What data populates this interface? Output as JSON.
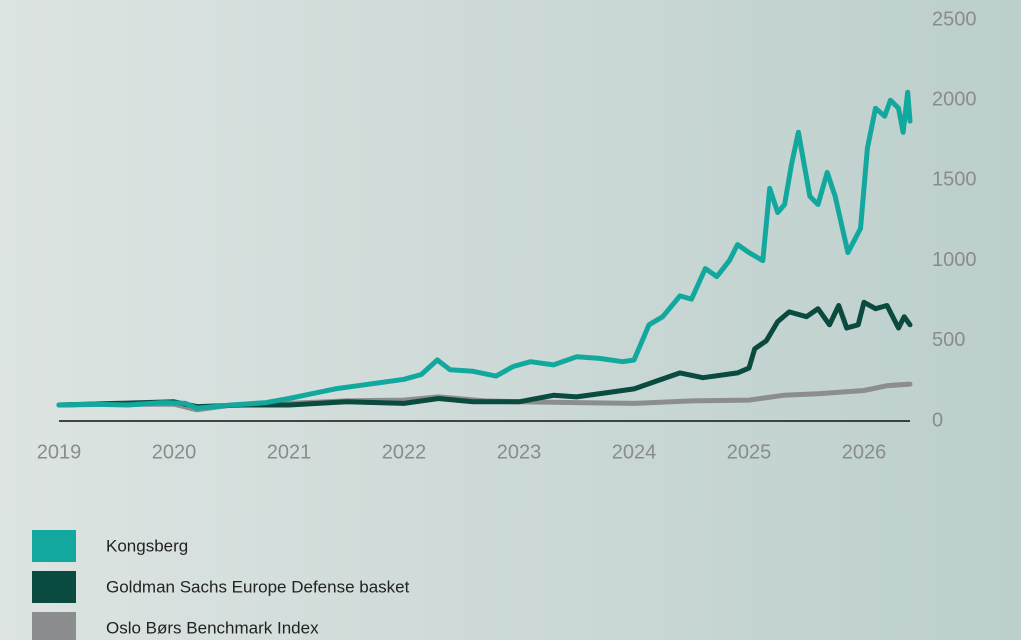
{
  "chart_data": {
    "type": "line",
    "xlim": [
      2019,
      2026.4
    ],
    "xticks": [
      2019,
      2020,
      2021,
      2022,
      2023,
      2024,
      2025,
      2026
    ],
    "ylim": [
      0,
      2500
    ],
    "yticks": [
      0,
      500,
      1000,
      1500,
      2000,
      2500
    ],
    "grid": false,
    "legend": "bottom-left",
    "series": [
      {
        "name": "Kongsberg",
        "color": "#13a89e",
        "x": [
          2019,
          2019.3,
          2019.6,
          2019.9,
          2020.1,
          2020.2,
          2020.5,
          2020.8,
          2021,
          2021.2,
          2021.4,
          2021.6,
          2021.8,
          2022,
          2022.15,
          2022.29,
          2022.4,
          2022.6,
          2022.8,
          2022.95,
          2023.1,
          2023.3,
          2023.5,
          2023.7,
          2023.9,
          2024,
          2024.13,
          2024.25,
          2024.4,
          2024.5,
          2024.62,
          2024.72,
          2024.83,
          2024.9,
          2025,
          2025.12,
          2025.18,
          2025.25,
          2025.31,
          2025.37,
          2025.43,
          2025.53,
          2025.6,
          2025.68,
          2025.75,
          2025.86,
          2025.97,
          2026.03,
          2026.1,
          2026.18,
          2026.23,
          2026.3,
          2026.34,
          2026.38,
          2026.4
        ],
        "values": [
          100,
          105,
          100,
          115,
          110,
          80,
          100,
          115,
          140,
          170,
          200,
          220,
          240,
          260,
          290,
          380,
          320,
          310,
          280,
          340,
          370,
          350,
          400,
          390,
          370,
          380,
          600,
          650,
          780,
          760,
          950,
          900,
          1000,
          1100,
          1050,
          1000,
          1450,
          1300,
          1350,
          1600,
          1800,
          1400,
          1350,
          1550,
          1400,
          1050,
          1200,
          1700,
          1950,
          1900,
          2000,
          1950,
          1800,
          2050,
          1870
        ]
      },
      {
        "name": "Goldman Sachs Europe Defense basket",
        "color": "#0b4a3e",
        "x": [
          2019,
          2019.5,
          2020,
          2020.2,
          2020.6,
          2021,
          2021.5,
          2022,
          2022.3,
          2022.6,
          2023,
          2023.3,
          2023.5,
          2023.8,
          2024,
          2024.2,
          2024.4,
          2024.6,
          2024.9,
          2025,
          2025.05,
          2025.15,
          2025.25,
          2025.35,
          2025.5,
          2025.6,
          2025.7,
          2025.78,
          2025.85,
          2025.95,
          2026,
          2026.1,
          2026.2,
          2026.3,
          2026.35,
          2026.4
        ],
        "values": [
          100,
          110,
          120,
          90,
          100,
          100,
          120,
          110,
          140,
          120,
          120,
          160,
          150,
          180,
          200,
          250,
          300,
          270,
          300,
          330,
          450,
          500,
          620,
          680,
          650,
          700,
          600,
          720,
          580,
          600,
          740,
          700,
          720,
          580,
          650,
          600
        ]
      },
      {
        "name": "Oslo Børs Benchmark Index",
        "color": "#8c8d8f",
        "x": [
          2019,
          2019.5,
          2020,
          2020.2,
          2020.5,
          2021,
          2021.5,
          2022,
          2022.3,
          2022.7,
          2023,
          2023.5,
          2024,
          2024.5,
          2025,
          2025.3,
          2025.6,
          2026,
          2026.2,
          2026.4
        ],
        "values": [
          100,
          105,
          105,
          70,
          100,
          110,
          125,
          130,
          150,
          125,
          120,
          115,
          110,
          125,
          130,
          160,
          170,
          190,
          220,
          230
        ]
      }
    ]
  }
}
